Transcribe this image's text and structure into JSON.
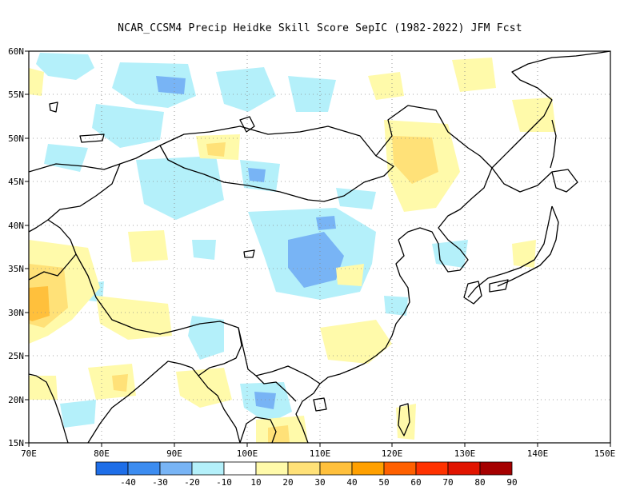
{
  "title": "NCAR_CCSM4 Precip Heidke Skill Score SepIC (1982-2022) JFM Fcst",
  "map": {
    "lat_labels": [
      "60N",
      "55N",
      "50N",
      "45N",
      "40N",
      "35N",
      "30N",
      "25N",
      "20N",
      "15N"
    ],
    "lon_labels": [
      "70E",
      "80E",
      "90E",
      "100E",
      "110E",
      "120E",
      "130E",
      "140E",
      "150E"
    ],
    "grid": "dotted"
  },
  "colorbar": {
    "labels": [
      "-40",
      "-30",
      "-20",
      "-10",
      "10",
      "20",
      "30",
      "40",
      "50",
      "60",
      "70",
      "80",
      "90"
    ],
    "colors": [
      "#1e6ee8",
      "#3c8cf0",
      "#78b4f5",
      "#b4f0fa",
      "#ffffff",
      "#fffaaa",
      "#ffe178",
      "#ffc03c",
      "#ffa000",
      "#ff6000",
      "#ff3200",
      "#e11400",
      "#a50000"
    ]
  },
  "field_colors": {
    "neg10": "#b4f0fa",
    "neg20": "#78b4f5",
    "neg30": "#3c8cf0",
    "pos10": "#fffaaa",
    "pos20": "#ffe178",
    "pos30": "#ffc03c"
  }
}
